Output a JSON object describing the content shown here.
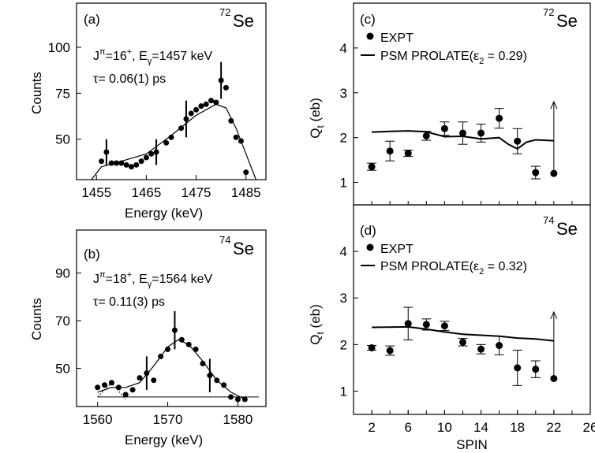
{
  "chart_data": [
    {
      "id": "a",
      "type": "scatter",
      "panel_label": "(a)",
      "nucleus_mass": "72",
      "nucleus_symbol": "Se",
      "line1": "J",
      "line1_sup": "π",
      "line1_mid": "=16",
      "line1_sup2": "+",
      "line1_tail": ", E",
      "line1_sub": "γ",
      "line1_end": "=1457 keV",
      "line2": "τ= 0.06(1) ps",
      "xlabel": "Energy (keV)",
      "ylabel": "Counts",
      "xlim": [
        1451,
        1489
      ],
      "ylim": [
        28,
        124
      ],
      "xticks": [
        1455,
        1465,
        1475,
        1485
      ],
      "yticks": [
        50,
        75,
        100
      ],
      "points": [
        [
          1456,
          38
        ],
        [
          1457,
          43
        ],
        [
          1458,
          37
        ],
        [
          1459,
          37
        ],
        [
          1460,
          37
        ],
        [
          1461,
          36
        ],
        [
          1462,
          35
        ],
        [
          1463,
          36
        ],
        [
          1464,
          38
        ],
        [
          1465,
          40
        ],
        [
          1466,
          42
        ],
        [
          1467,
          43
        ],
        [
          1469,
          48
        ],
        [
          1470,
          51
        ],
        [
          1472,
          56
        ],
        [
          1473,
          61
        ],
        [
          1474,
          64
        ],
        [
          1475,
          66
        ],
        [
          1476,
          68
        ],
        [
          1477,
          69
        ],
        [
          1478,
          71
        ],
        [
          1479,
          70
        ],
        [
          1480,
          82
        ],
        [
          1481,
          78
        ],
        [
          1482,
          60
        ],
        [
          1483,
          51
        ],
        [
          1484,
          49
        ],
        [
          1485,
          32
        ]
      ],
      "error_bars": [
        [
          1457,
          43,
          7
        ],
        [
          1467,
          43,
          7
        ],
        [
          1473,
          61,
          10
        ],
        [
          1480,
          82,
          10
        ]
      ],
      "fit": [
        [
          1454,
          28
        ],
        [
          1456,
          35
        ],
        [
          1460,
          38
        ],
        [
          1465,
          42
        ],
        [
          1470,
          52
        ],
        [
          1475,
          63
        ],
        [
          1479,
          69
        ],
        [
          1481,
          67
        ],
        [
          1483,
          56
        ],
        [
          1485,
          42
        ],
        [
          1487,
          28
        ]
      ]
    },
    {
      "id": "b",
      "type": "scatter",
      "panel_label": "(b)",
      "nucleus_mass": "74",
      "nucleus_symbol": "Se",
      "line1": "J",
      "line1_sup": "π",
      "line1_mid": "=18",
      "line1_sup2": "+",
      "line1_tail": ", E",
      "line1_sub": "γ",
      "line1_end": "=1564 keV",
      "line2": "τ= 0.11(3) ps",
      "xlabel": "Energy (keV)",
      "ylabel": "Counts",
      "xlim": [
        1557,
        1584
      ],
      "ylim": [
        34,
        108
      ],
      "xticks": [
        1560,
        1570,
        1580
      ],
      "yticks": [
        50,
        70,
        90
      ],
      "points": [
        [
          1560,
          42
        ],
        [
          1561,
          43
        ],
        [
          1562,
          44
        ],
        [
          1563,
          42
        ],
        [
          1564,
          39
        ],
        [
          1565,
          41
        ],
        [
          1566,
          46
        ],
        [
          1567,
          48
        ],
        [
          1568,
          45
        ],
        [
          1569,
          55
        ],
        [
          1570,
          58
        ],
        [
          1571,
          66
        ],
        [
          1572,
          62
        ],
        [
          1573,
          60
        ],
        [
          1574,
          58
        ],
        [
          1575,
          52
        ],
        [
          1576,
          47
        ],
        [
          1577,
          45
        ],
        [
          1578,
          43
        ],
        [
          1579,
          38
        ],
        [
          1580,
          37
        ],
        [
          1581,
          37
        ]
      ],
      "error_bars": [
        [
          1567,
          48,
          7
        ],
        [
          1571,
          66,
          8
        ],
        [
          1576,
          47,
          7
        ]
      ],
      "fit": [
        [
          1560,
          40
        ],
        [
          1562,
          42
        ],
        [
          1564,
          42
        ],
        [
          1566,
          44
        ],
        [
          1568,
          51
        ],
        [
          1570,
          59
        ],
        [
          1571.5,
          62
        ],
        [
          1573,
          60
        ],
        [
          1575,
          53
        ],
        [
          1577,
          45
        ],
        [
          1579,
          40
        ],
        [
          1581,
          37
        ]
      ],
      "bg_dotted": [
        [
          1560,
          38
        ],
        [
          1562,
          44
        ],
        [
          1564,
          37
        ]
      ]
    },
    {
      "id": "c",
      "type": "scatter",
      "panel_label": "(c)",
      "nucleus_mass": "72",
      "nucleus_symbol": "Se",
      "legend_expt": "EXPT",
      "legend_psm": "PSM PROLATE(ε",
      "legend_psm_sub": "2",
      "legend_psm_end": " = 0.29)",
      "ylabel": "Q",
      "ylabel_sub": "t",
      "ylabel_end": " (eb)",
      "xlim": [
        0,
        26
      ],
      "ylim": [
        0.5,
        5
      ],
      "yticks": [
        1,
        2,
        3,
        4
      ],
      "points": [
        [
          2,
          1.35,
          0.08
        ],
        [
          4,
          1.7,
          0.22
        ],
        [
          6,
          1.65,
          0.07
        ],
        [
          8,
          2.04,
          0.1
        ],
        [
          10,
          2.2,
          0.15
        ],
        [
          12,
          2.1,
          0.25
        ],
        [
          14,
          2.1,
          0.2
        ],
        [
          16,
          2.43,
          0.22
        ],
        [
          18,
          1.92,
          0.28
        ],
        [
          20,
          1.22,
          0.14
        ],
        [
          22,
          1.2,
          0
        ]
      ],
      "psm": [
        [
          2,
          2.12
        ],
        [
          4,
          2.14
        ],
        [
          6,
          2.15
        ],
        [
          8,
          2.13
        ],
        [
          10,
          2.02
        ],
        [
          12,
          2.03
        ],
        [
          14,
          1.97
        ],
        [
          16,
          2.0
        ],
        [
          17,
          1.85
        ],
        [
          18,
          1.75
        ],
        [
          19,
          1.9
        ],
        [
          20,
          1.95
        ],
        [
          22,
          1.93
        ]
      ],
      "arrow_x": 22,
      "arrow_from": 1.2,
      "arrow_to": 2.8
    },
    {
      "id": "d",
      "type": "scatter",
      "panel_label": "(d)",
      "nucleus_mass": "74",
      "nucleus_symbol": "Se",
      "legend_expt": "EXPT",
      "legend_psm": "PSM PROLATE(ε",
      "legend_psm_sub": "2",
      "legend_psm_end": " = 0.32)",
      "ylabel": "Q",
      "ylabel_sub": "t",
      "ylabel_end": " (eb)",
      "xlabel": "SPIN",
      "xlim": [
        0,
        26
      ],
      "ylim": [
        0.5,
        5
      ],
      "xticks": [
        2,
        6,
        10,
        14,
        18,
        22,
        26
      ],
      "yticks": [
        1,
        2,
        3,
        4
      ],
      "points": [
        [
          2,
          1.93,
          0.05
        ],
        [
          4,
          1.87,
          0.1
        ],
        [
          6,
          2.45,
          0.35
        ],
        [
          8,
          2.43,
          0.12
        ],
        [
          10,
          2.4,
          0.1
        ],
        [
          12,
          2.05,
          0.08
        ],
        [
          14,
          1.9,
          0.1
        ],
        [
          16,
          1.98,
          0.2
        ],
        [
          18,
          1.5,
          0.38
        ],
        [
          20,
          1.47,
          0.18
        ],
        [
          22,
          1.27,
          0
        ]
      ],
      "psm": [
        [
          2,
          2.37
        ],
        [
          6,
          2.38
        ],
        [
          8,
          2.33
        ],
        [
          10,
          2.27
        ],
        [
          12,
          2.22
        ],
        [
          14,
          2.2
        ],
        [
          16,
          2.18
        ],
        [
          18,
          2.14
        ],
        [
          20,
          2.12
        ],
        [
          22,
          2.08
        ]
      ],
      "arrow_x": 22,
      "arrow_from": 1.27,
      "arrow_to": 2.7
    }
  ]
}
